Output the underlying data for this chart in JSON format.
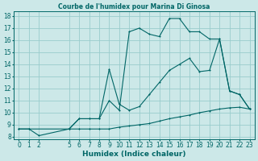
{
  "title": "Courbe de l'humidex pour Marina Di Ginosa",
  "xlabel": "Humidex (Indice chaleur)",
  "bg_color": "#cce8e8",
  "line_color": "#006666",
  "grid_color": "#99cccc",
  "xlim": [
    -0.5,
    23.5
  ],
  "ylim": [
    7.8,
    18.4
  ],
  "xticks": [
    0,
    1,
    2,
    5,
    6,
    7,
    8,
    9,
    10,
    11,
    12,
    13,
    14,
    15,
    16,
    17,
    18,
    19,
    20,
    21,
    22,
    23
  ],
  "yticks": [
    8,
    9,
    10,
    11,
    12,
    13,
    14,
    15,
    16,
    17,
    18
  ],
  "line1_x": [
    0,
    1,
    2,
    5,
    6,
    7,
    8,
    9,
    10,
    11,
    12,
    13,
    14,
    15,
    16,
    17,
    18,
    19,
    20,
    21,
    22,
    23
  ],
  "line1_y": [
    8.65,
    8.65,
    8.1,
    8.65,
    8.65,
    8.65,
    8.65,
    8.65,
    8.8,
    8.9,
    9.0,
    9.1,
    9.3,
    9.5,
    9.65,
    9.8,
    10.0,
    10.15,
    10.3,
    10.4,
    10.45,
    10.3
  ],
  "line2_x": [
    0,
    1,
    5,
    6,
    7,
    8,
    9,
    10,
    11,
    12,
    13,
    14,
    15,
    16,
    17,
    18,
    19,
    20,
    21,
    22,
    23
  ],
  "line2_y": [
    8.65,
    8.65,
    8.65,
    9.5,
    9.5,
    9.5,
    11.0,
    10.2,
    16.7,
    17.0,
    16.5,
    16.3,
    17.8,
    17.8,
    16.7,
    16.7,
    16.1,
    16.1,
    11.8,
    11.5,
    10.3
  ],
  "line3_x": [
    5,
    6,
    7,
    8,
    9,
    10,
    11,
    12,
    13,
    14,
    15,
    16,
    17,
    18,
    19,
    20,
    21,
    22,
    23
  ],
  "line3_y": [
    8.65,
    9.5,
    9.5,
    9.5,
    13.6,
    10.7,
    10.2,
    10.5,
    11.5,
    12.5,
    13.5,
    14.0,
    14.5,
    13.4,
    13.5,
    16.1,
    11.8,
    11.5,
    10.3
  ],
  "tick_fontsize": 5.5,
  "label_fontsize": 6.5
}
